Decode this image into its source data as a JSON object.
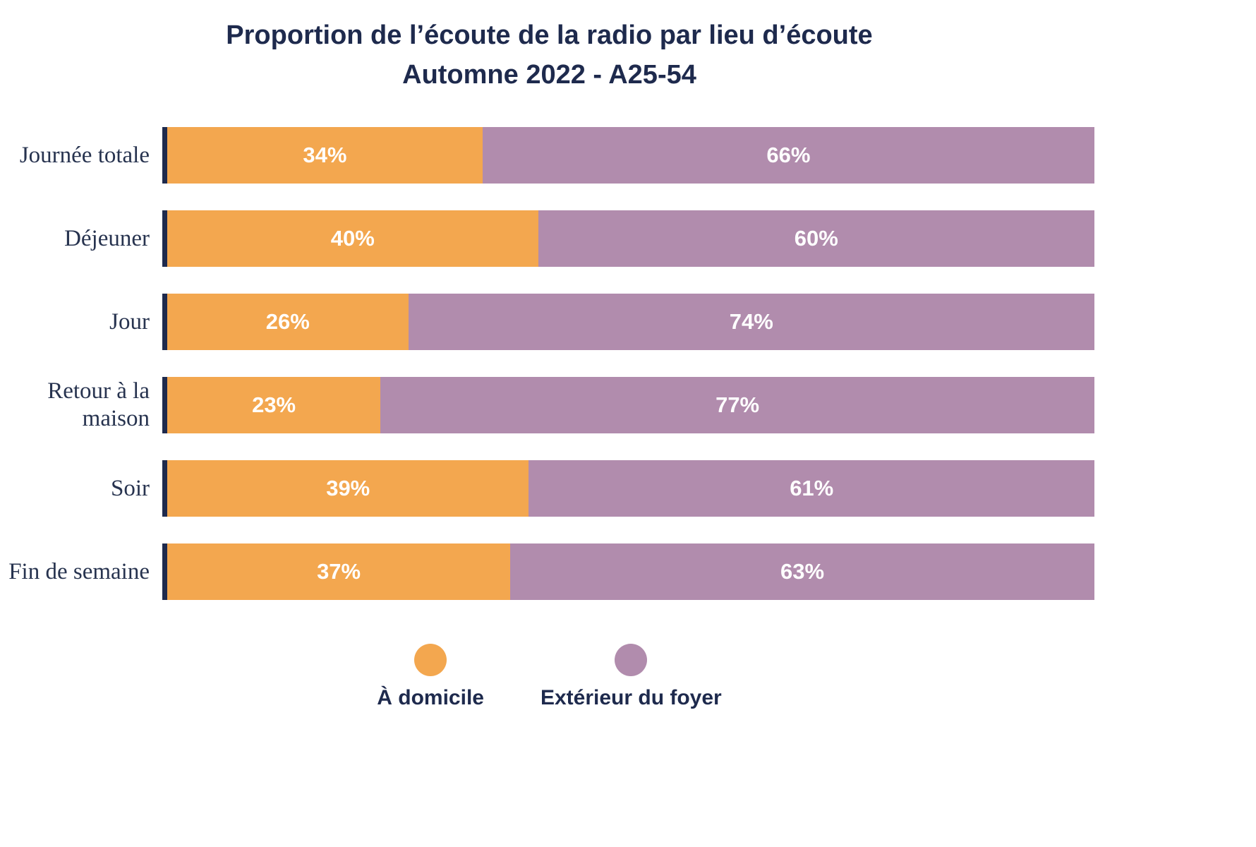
{
  "title": {
    "line1": "Proportion de l’écoute de la radio par lieu d’écoute",
    "line2": "Automne 2022 - A25-54"
  },
  "chart_data": {
    "type": "bar",
    "orientation": "horizontal",
    "stacked": true,
    "unit": "%",
    "xlim": [
      0,
      100
    ],
    "grid": false,
    "legend_position": "bottom",
    "categories": [
      "Journée totale",
      "Déjeuner",
      "Jour",
      "Retour à la maison",
      "Soir",
      "Fin de semaine"
    ],
    "series": [
      {
        "name": "À domicile",
        "color": "#F3A74F",
        "values": [
          34,
          40,
          26,
          23,
          39,
          37
        ]
      },
      {
        "name": "Extérieur du foyer",
        "color": "#B18CAD",
        "values": [
          66,
          60,
          74,
          77,
          61,
          63
        ]
      }
    ],
    "legend": [
      {
        "label": "À domicile",
        "color": "#F3A74F"
      },
      {
        "label": "Extérieur du foyer",
        "color": "#B18CAD"
      }
    ]
  },
  "colors": {
    "title": "#1E2A4D",
    "category_label": "#27334F",
    "axis": "#1E2A4D",
    "bar_value_text": "#FFFFFF",
    "background": "#FFFFFF"
  }
}
